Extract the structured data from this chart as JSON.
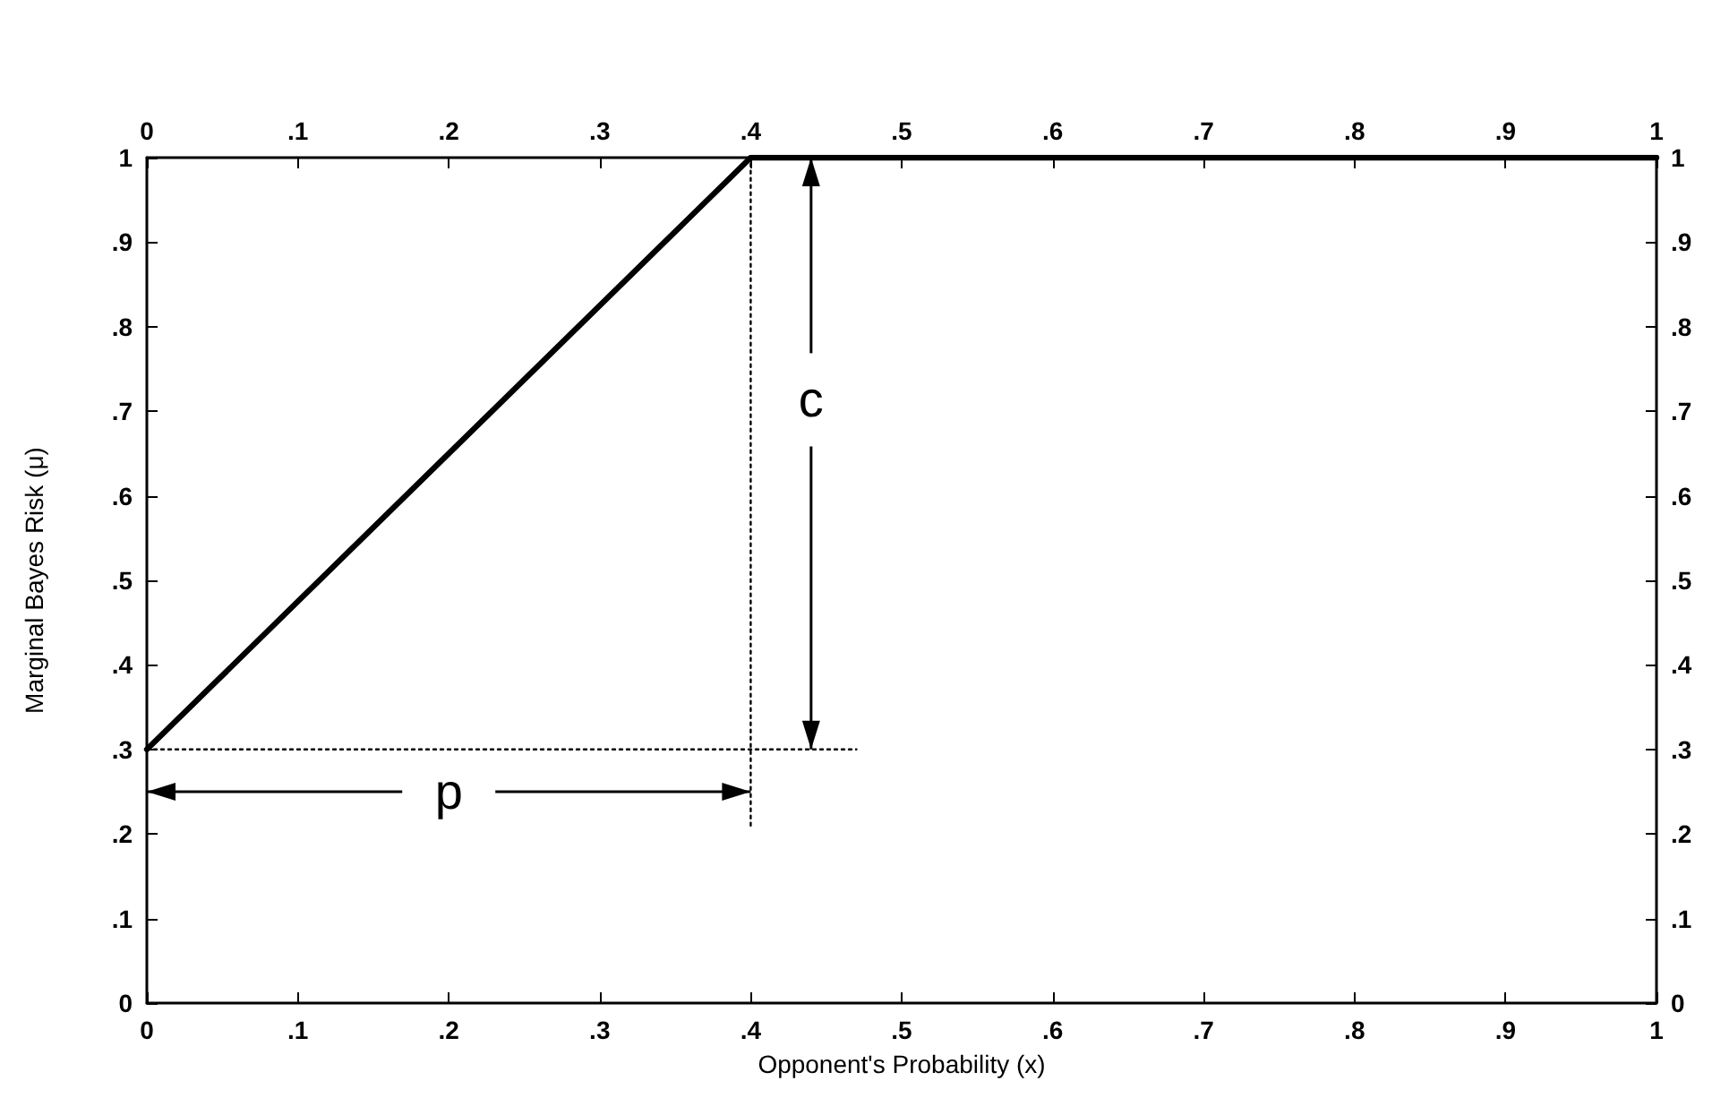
{
  "chart_data": {
    "type": "line",
    "xlabel": "Opponent's Probability (x)",
    "ylabel": "Marginal Bayes Risk (μ)",
    "series": [
      {
        "x": [
          0,
          0.4,
          1
        ],
        "values": [
          0.3,
          1,
          1
        ],
        "color": "#000000",
        "line_style": "solid"
      },
      {
        "x": [
          0,
          0.47
        ],
        "values": [
          0.3,
          0.3
        ],
        "color": "#000000",
        "line_style": "dotted"
      },
      {
        "x": [
          0.4,
          0.4
        ],
        "values": [
          0.21,
          1
        ],
        "color": "#000000",
        "line_style": "dotted"
      }
    ],
    "annotations": [
      {
        "text": "p",
        "x": 0.4,
        "y": 0.25
      },
      {
        "text": "c",
        "x": 0.44,
        "y": 0.3
      }
    ],
    "marker": "none",
    "grid": false,
    "xlim": [
      0,
      1
    ],
    "xticks": [
      0,
      {
        "value": 0.1,
        "label": ".1"
      },
      {
        "value": 0.2,
        "label": ".2"
      },
      {
        "value": 0.3,
        "label": ".3"
      },
      {
        "value": 0.4,
        "label": ".4"
      },
      {
        "value": 0.5,
        "label": ".5"
      },
      {
        "value": 0.6,
        "label": ".6"
      },
      {
        "value": 0.7,
        "label": ".7"
      },
      {
        "value": 0.8,
        "label": ".8"
      },
      {
        "value": 0.9,
        "label": ".9"
      },
      1
    ],
    "x2lim": [
      0,
      1
    ],
    "x2ticks": [
      0,
      {
        "value": 0.1,
        "label": ".1"
      },
      {
        "value": 0.2,
        "label": ".2"
      },
      {
        "value": 0.3,
        "label": ".3"
      },
      {
        "value": 0.4,
        "label": ".4"
      },
      {
        "value": 0.5,
        "label": ".5"
      },
      {
        "value": 0.6,
        "label": ".6"
      },
      {
        "value": 0.7,
        "label": ".7"
      },
      {
        "value": 0.8,
        "label": ".8"
      },
      {
        "value": 0.9,
        "label": ".9"
      },
      1
    ],
    "ylim": [
      0,
      1
    ],
    "yticks": [
      0,
      {
        "value": 0.1,
        "label": ".1"
      },
      {
        "value": 0.2,
        "label": ".2"
      },
      {
        "value": 0.3,
        "label": ".3"
      },
      {
        "value": 0.4,
        "label": ".4"
      },
      {
        "value": 0.5,
        "label": ".5"
      },
      {
        "value": 0.6,
        "label": ".6"
      },
      {
        "value": 0.7,
        "label": ".7"
      },
      {
        "value": 0.8,
        "label": ".8"
      },
      {
        "value": 0.9,
        "label": ".9"
      },
      1
    ],
    "y2lim": [
      0,
      1
    ],
    "y2ticks": [
      0,
      {
        "value": 0.1,
        "label": ".1"
      },
      {
        "value": 0.2,
        "label": ".2"
      },
      {
        "value": 0.3,
        "label": ".3"
      },
      {
        "value": 0.4,
        "label": ".4"
      },
      {
        "value": 0.5,
        "label": ".5"
      },
      {
        "value": 0.6,
        "label": ".6"
      },
      {
        "value": 0.7,
        "label": ".7"
      },
      {
        "value": 0.8,
        "label": ".8"
      },
      {
        "value": 0.9,
        "label": ".9"
      },
      1
    ]
  }
}
